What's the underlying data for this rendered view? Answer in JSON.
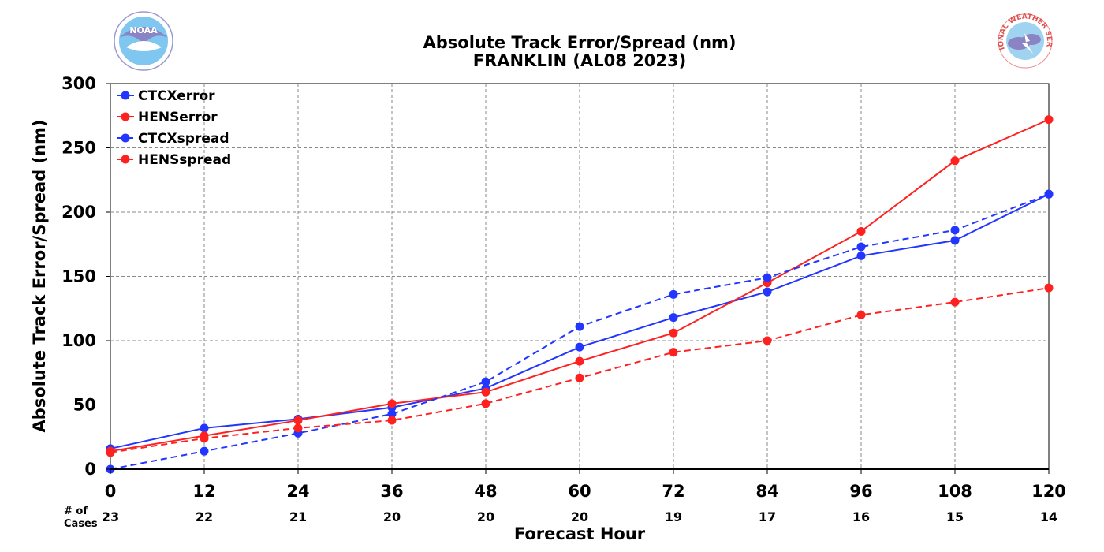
{
  "logos": {
    "left_text": "NOAA",
    "right_arc_text": "NATIONAL WEATHER SERVICE"
  },
  "chart_data": {
    "type": "line",
    "title": "Absolute Track Error/Spread (nm)",
    "subtitle": "FRANKLIN (AL08 2023)",
    "xlabel": "Forecast Hour",
    "ylabel": "Absolute Track Error/Spread (nm)",
    "x": [
      0,
      12,
      24,
      36,
      48,
      60,
      72,
      84,
      96,
      108,
      120
    ],
    "xlim": [
      0,
      120
    ],
    "ylim": [
      0,
      300
    ],
    "yticks": [
      0,
      50,
      100,
      150,
      200,
      250,
      300
    ],
    "grid": true,
    "legend_position": "top-left",
    "series": [
      {
        "name": "CTCXerror",
        "color": "#2236ff",
        "dash": "solid",
        "values": [
          16,
          32,
          39,
          48,
          63,
          95,
          118,
          138,
          166,
          178,
          214
        ]
      },
      {
        "name": "HENSerror",
        "color": "#ff2020",
        "dash": "solid",
        "values": [
          14,
          26,
          38,
          51,
          60,
          84,
          106,
          145,
          185,
          240,
          272
        ]
      },
      {
        "name": "CTCXspread",
        "color": "#2236ff",
        "dash": "dashed",
        "values": [
          0,
          14,
          28,
          43,
          68,
          111,
          136,
          149,
          173,
          186,
          214
        ]
      },
      {
        "name": "HENSspread",
        "color": "#ff2020",
        "dash": "dashed",
        "values": [
          13,
          24,
          32,
          38,
          51,
          71,
          91,
          100,
          120,
          130,
          141
        ]
      }
    ],
    "cases_label": "# of\nCases",
    "cases": [
      23,
      22,
      21,
      20,
      20,
      20,
      19,
      17,
      16,
      15,
      14
    ]
  }
}
